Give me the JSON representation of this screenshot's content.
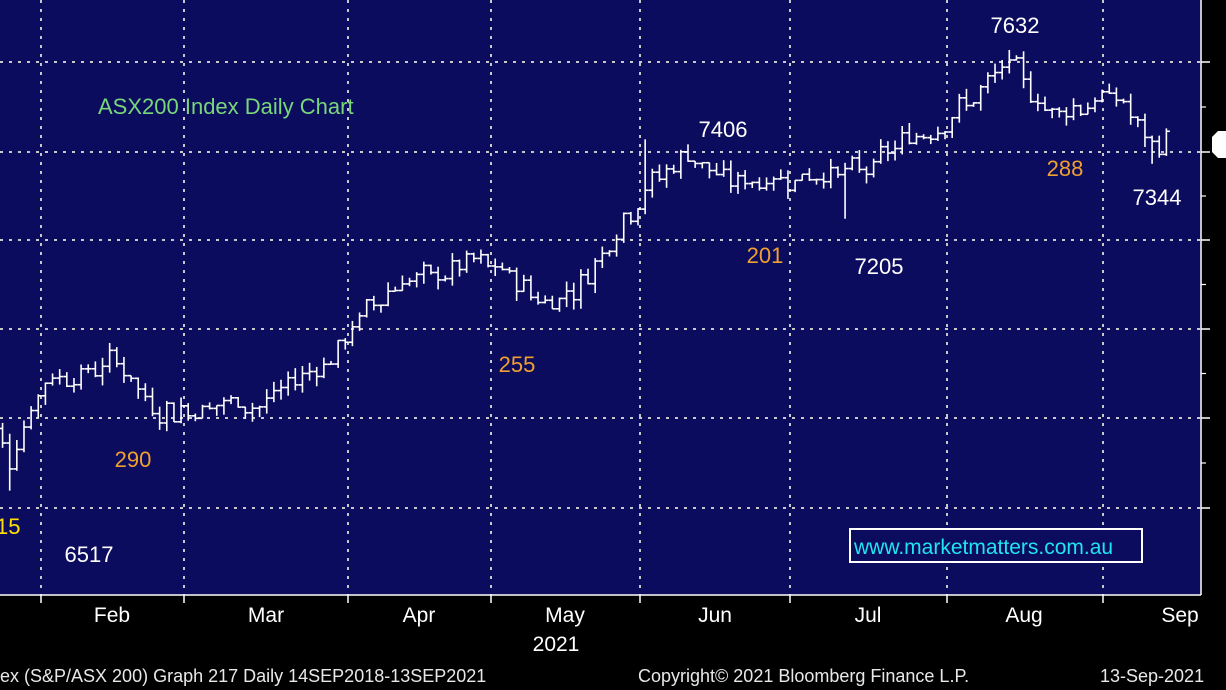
{
  "chart_data": {
    "type": "ohlc",
    "title": "ASX200 Index Daily Chart",
    "watermark": "www.marketmatters.com.au",
    "x_labels": [
      "Feb",
      "Mar",
      "Apr",
      "May",
      "Jun",
      "Jul",
      "Aug",
      "Sep"
    ],
    "year_label": "2021",
    "ylim": [
      6420,
      7680
    ],
    "grid": true,
    "annotations": [
      {
        "text": "7632",
        "kind": "price",
        "value": 7632,
        "date": "2021-08-13"
      },
      {
        "text": "7406",
        "kind": "price",
        "value": 7406,
        "date": "2021-06-03"
      },
      {
        "text": "7205",
        "kind": "price",
        "value": 7205,
        "date": "2021-07-12"
      },
      {
        "text": "7344",
        "kind": "price",
        "value": 7344,
        "date": "2021-09-10"
      },
      {
        "text": "6517",
        "kind": "price",
        "value": 6517,
        "date": "2021-01-29"
      },
      {
        "text": "290",
        "kind": "range",
        "value": 290,
        "date": "2021-02-08"
      },
      {
        "text": "255",
        "kind": "range",
        "value": 255,
        "date": "2021-04-22"
      },
      {
        "text": "201",
        "kind": "range",
        "value": 201,
        "date": "2021-06-16"
      },
      {
        "text": "288",
        "kind": "range",
        "value": 288,
        "date": "2021-08-27"
      },
      {
        "text": "15",
        "kind": "range-partial",
        "value": 15,
        "date": "2021-01-22"
      }
    ],
    "series": [
      {
        "name": "ASX200",
        "points": [
          {
            "date": "2021-01-22",
            "value": 6800
          },
          {
            "date": "2021-01-29",
            "value": 6600
          },
          {
            "date": "2021-02-05",
            "value": 6800
          },
          {
            "date": "2021-02-12",
            "value": 6810
          },
          {
            "date": "2021-02-19",
            "value": 6850
          },
          {
            "date": "2021-02-26",
            "value": 6720
          },
          {
            "date": "2021-03-05",
            "value": 6720
          },
          {
            "date": "2021-03-12",
            "value": 6740
          },
          {
            "date": "2021-03-19",
            "value": 6730
          },
          {
            "date": "2021-03-26",
            "value": 6800
          },
          {
            "date": "2021-04-02",
            "value": 6850
          },
          {
            "date": "2021-04-09",
            "value": 6980
          },
          {
            "date": "2021-04-16",
            "value": 7050
          },
          {
            "date": "2021-04-23",
            "value": 7060
          },
          {
            "date": "2021-04-30",
            "value": 7100
          },
          {
            "date": "2021-05-07",
            "value": 7060
          },
          {
            "date": "2021-05-14",
            "value": 6990
          },
          {
            "date": "2021-05-21",
            "value": 7040
          },
          {
            "date": "2021-05-28",
            "value": 7180
          },
          {
            "date": "2021-06-04",
            "value": 7300
          },
          {
            "date": "2021-06-11",
            "value": 7370
          },
          {
            "date": "2021-06-18",
            "value": 7300
          },
          {
            "date": "2021-06-25",
            "value": 7300
          },
          {
            "date": "2021-07-02",
            "value": 7310
          },
          {
            "date": "2021-07-09",
            "value": 7320
          },
          {
            "date": "2021-07-16",
            "value": 7330
          },
          {
            "date": "2021-07-23",
            "value": 7400
          },
          {
            "date": "2021-07-30",
            "value": 7440
          },
          {
            "date": "2021-08-06",
            "value": 7510
          },
          {
            "date": "2021-08-13",
            "value": 7600
          },
          {
            "date": "2021-08-20",
            "value": 7480
          },
          {
            "date": "2021-08-27",
            "value": 7490
          },
          {
            "date": "2021-09-03",
            "value": 7520
          },
          {
            "date": "2021-09-10",
            "value": 7380
          },
          {
            "date": "2021-09-13",
            "value": 7410
          }
        ]
      }
    ]
  },
  "footer": {
    "left": "ex (S&P/ASX 200) Graph 217  Daily 14SEP2018-13SEP2021",
    "center": "Copyright© 2021 Bloomberg Finance L.P.",
    "right": "13-Sep-2021"
  },
  "colors": {
    "background": "#0c0c5e",
    "grid": "#c8c8c8",
    "bars": "#ffffff",
    "title": "#79d679",
    "range_labels": "#f0a030",
    "partial_label": "#ffe000",
    "watermark": "#22e4f0"
  }
}
